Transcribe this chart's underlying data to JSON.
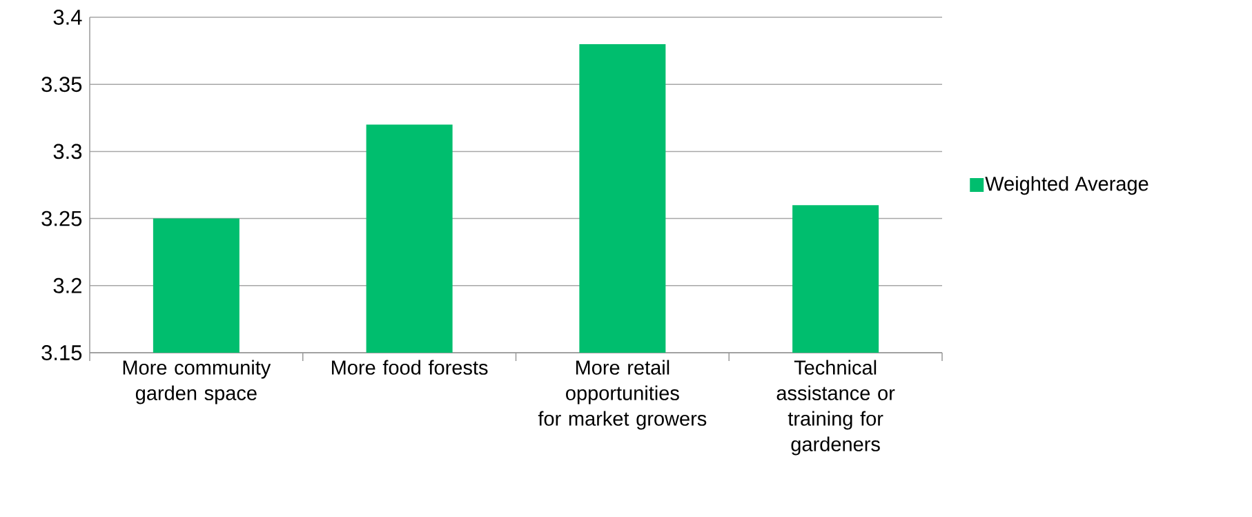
{
  "chart_data": {
    "type": "bar",
    "categories": [
      "More community garden space",
      "More food forests",
      "More retail opportunities for market growers",
      "Technical assistance or training for gardeners"
    ],
    "series": [
      {
        "name": "Weighted Average",
        "color": "#00be6e",
        "values": [
          3.25,
          3.32,
          3.38,
          3.26
        ]
      }
    ],
    "ylim": [
      3.15,
      3.4
    ],
    "yticks": [
      3.15,
      3.2,
      3.25,
      3.3,
      3.35,
      3.4
    ],
    "grid": "y",
    "legend": "right"
  }
}
